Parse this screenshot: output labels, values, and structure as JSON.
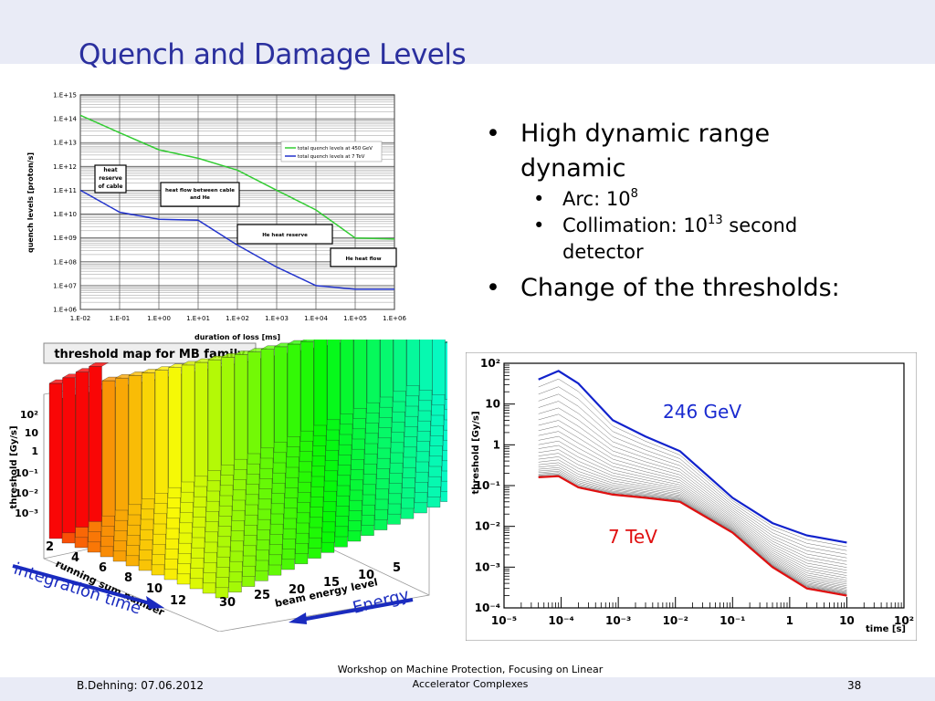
{
  "slide": {
    "title": "Quench and Damage Levels",
    "footer_left": "B.Dehning: 07.06.2012",
    "footer_mid_1": "Workshop on Machine Protection, Focusing on Linear",
    "footer_mid_2": "Accelerator Complexes",
    "page_number": "38"
  },
  "bullets": {
    "b1": "High dynamic range dynamic",
    "arc_prefix": "Arc: 10",
    "arc_exp": "8",
    "coll_prefix": "Collimation: 10",
    "coll_exp": "13",
    "coll_suffix": " second detector",
    "b2": "Change of the thresholds:"
  },
  "annotations": {
    "integration_time": "integration time",
    "energy": "Energy"
  },
  "chart_data": [
    {
      "type": "line",
      "xlabel": "duration of loss [ms]",
      "ylabel": "quench levels [proton/s]",
      "x_log": true,
      "y_log": true,
      "xlim": [
        0.01,
        1000000
      ],
      "ylim": [
        1000000,
        1000000000000000
      ],
      "x_tick_labels": [
        "1.E-02",
        "1.E-01",
        "1.E+00",
        "1.E+01",
        "1.E+02",
        "1.E+03",
        "1.E+04",
        "1.E+05",
        "1.E+06"
      ],
      "y_tick_labels": [
        "1.E+06",
        "1.E+07",
        "1.E+08",
        "1.E+09",
        "1.E+10",
        "1.E+11",
        "1.E+12",
        "1.E+13",
        "1.E+14",
        "1.E+15"
      ],
      "grid": true,
      "legend_position": "top-right",
      "series": [
        {
          "name": "total quench levels at 450 GeV",
          "color": "#33cc33",
          "points": [
            [
              0.01,
              140000000000000.0
            ],
            [
              0.1,
              26000000000000.0
            ],
            [
              1,
              5000000000000.0
            ],
            [
              10,
              2200000000000.0
            ],
            [
              100,
              700000000000.0
            ],
            [
              1000,
              100000000000.0
            ],
            [
              10000,
              15000000000.0
            ],
            [
              100000,
              1000000000.0
            ],
            [
              1000000,
              900000000.0
            ]
          ]
        },
        {
          "name": "total quench levels at 7 TeV",
          "color": "#2233cc",
          "points": [
            [
              0.01,
              100000000000.0
            ],
            [
              0.1,
              12000000000.0
            ],
            [
              1,
              6000000000.0
            ],
            [
              10,
              5500000000.0
            ],
            [
              100,
              500000000.0
            ],
            [
              1000,
              60000000.0
            ],
            [
              10000,
              10000000.0
            ],
            [
              100000,
              7000000.0
            ],
            [
              1000000,
              7000000.0
            ]
          ]
        }
      ],
      "annotations": [
        "heat reserve of cable",
        "heat flow between cable and He",
        "He heat reserve",
        "He heat flow"
      ]
    },
    {
      "type": "bar3d",
      "title": "threshold map for MB family",
      "zlabel": "threshold [Gy/s]",
      "xlabel": "running sum number",
      "ylabel": "beam energy level",
      "z_tick_labels": [
        "10²",
        "10",
        "1",
        "10⁻¹",
        "10⁻²",
        "10⁻³"
      ],
      "x_tick_labels": [
        "2",
        "4",
        "6",
        "8",
        "10",
        "12"
      ],
      "y_tick_labels": [
        "30",
        "25",
        "20",
        "15",
        "10",
        "5"
      ]
    },
    {
      "type": "line",
      "xlabel": "time [s]",
      "ylabel": "threshold [Gy/s]",
      "x_log": true,
      "y_log": true,
      "xlim": [
        1e-05,
        100
      ],
      "ylim": [
        0.0001,
        100
      ],
      "x_tick_labels": [
        "10⁻⁵",
        "10⁻⁴",
        "10⁻³",
        "10⁻²",
        "10⁻¹",
        "1",
        "10",
        "10²"
      ],
      "y_tick_labels": [
        "10²",
        "10",
        "1",
        "10⁻¹",
        "10⁻²",
        "10⁻³",
        "10⁻⁴"
      ],
      "series": [
        {
          "name": "246 GeV",
          "color": "#1122cc",
          "points": [
            [
              4e-05,
              40
            ],
            [
              9e-05,
              65
            ],
            [
              0.0002,
              32
            ],
            [
              0.0008,
              4
            ],
            [
              0.003,
              1.6
            ],
            [
              0.012,
              0.7
            ],
            [
              0.1,
              0.05
            ],
            [
              0.5,
              0.012
            ],
            [
              2,
              0.006
            ],
            [
              10,
              0.004
            ]
          ]
        },
        {
          "name": "7 TeV",
          "color": "#e01010",
          "points": [
            [
              4e-05,
              0.16
            ],
            [
              9e-05,
              0.17
            ],
            [
              0.0002,
              0.09
            ],
            [
              0.0008,
              0.06
            ],
            [
              0.003,
              0.05
            ],
            [
              0.012,
              0.04
            ],
            [
              0.1,
              0.007
            ],
            [
              0.5,
              0.001
            ],
            [
              2,
              0.0003
            ],
            [
              10,
              0.0002
            ]
          ]
        }
      ]
    }
  ]
}
